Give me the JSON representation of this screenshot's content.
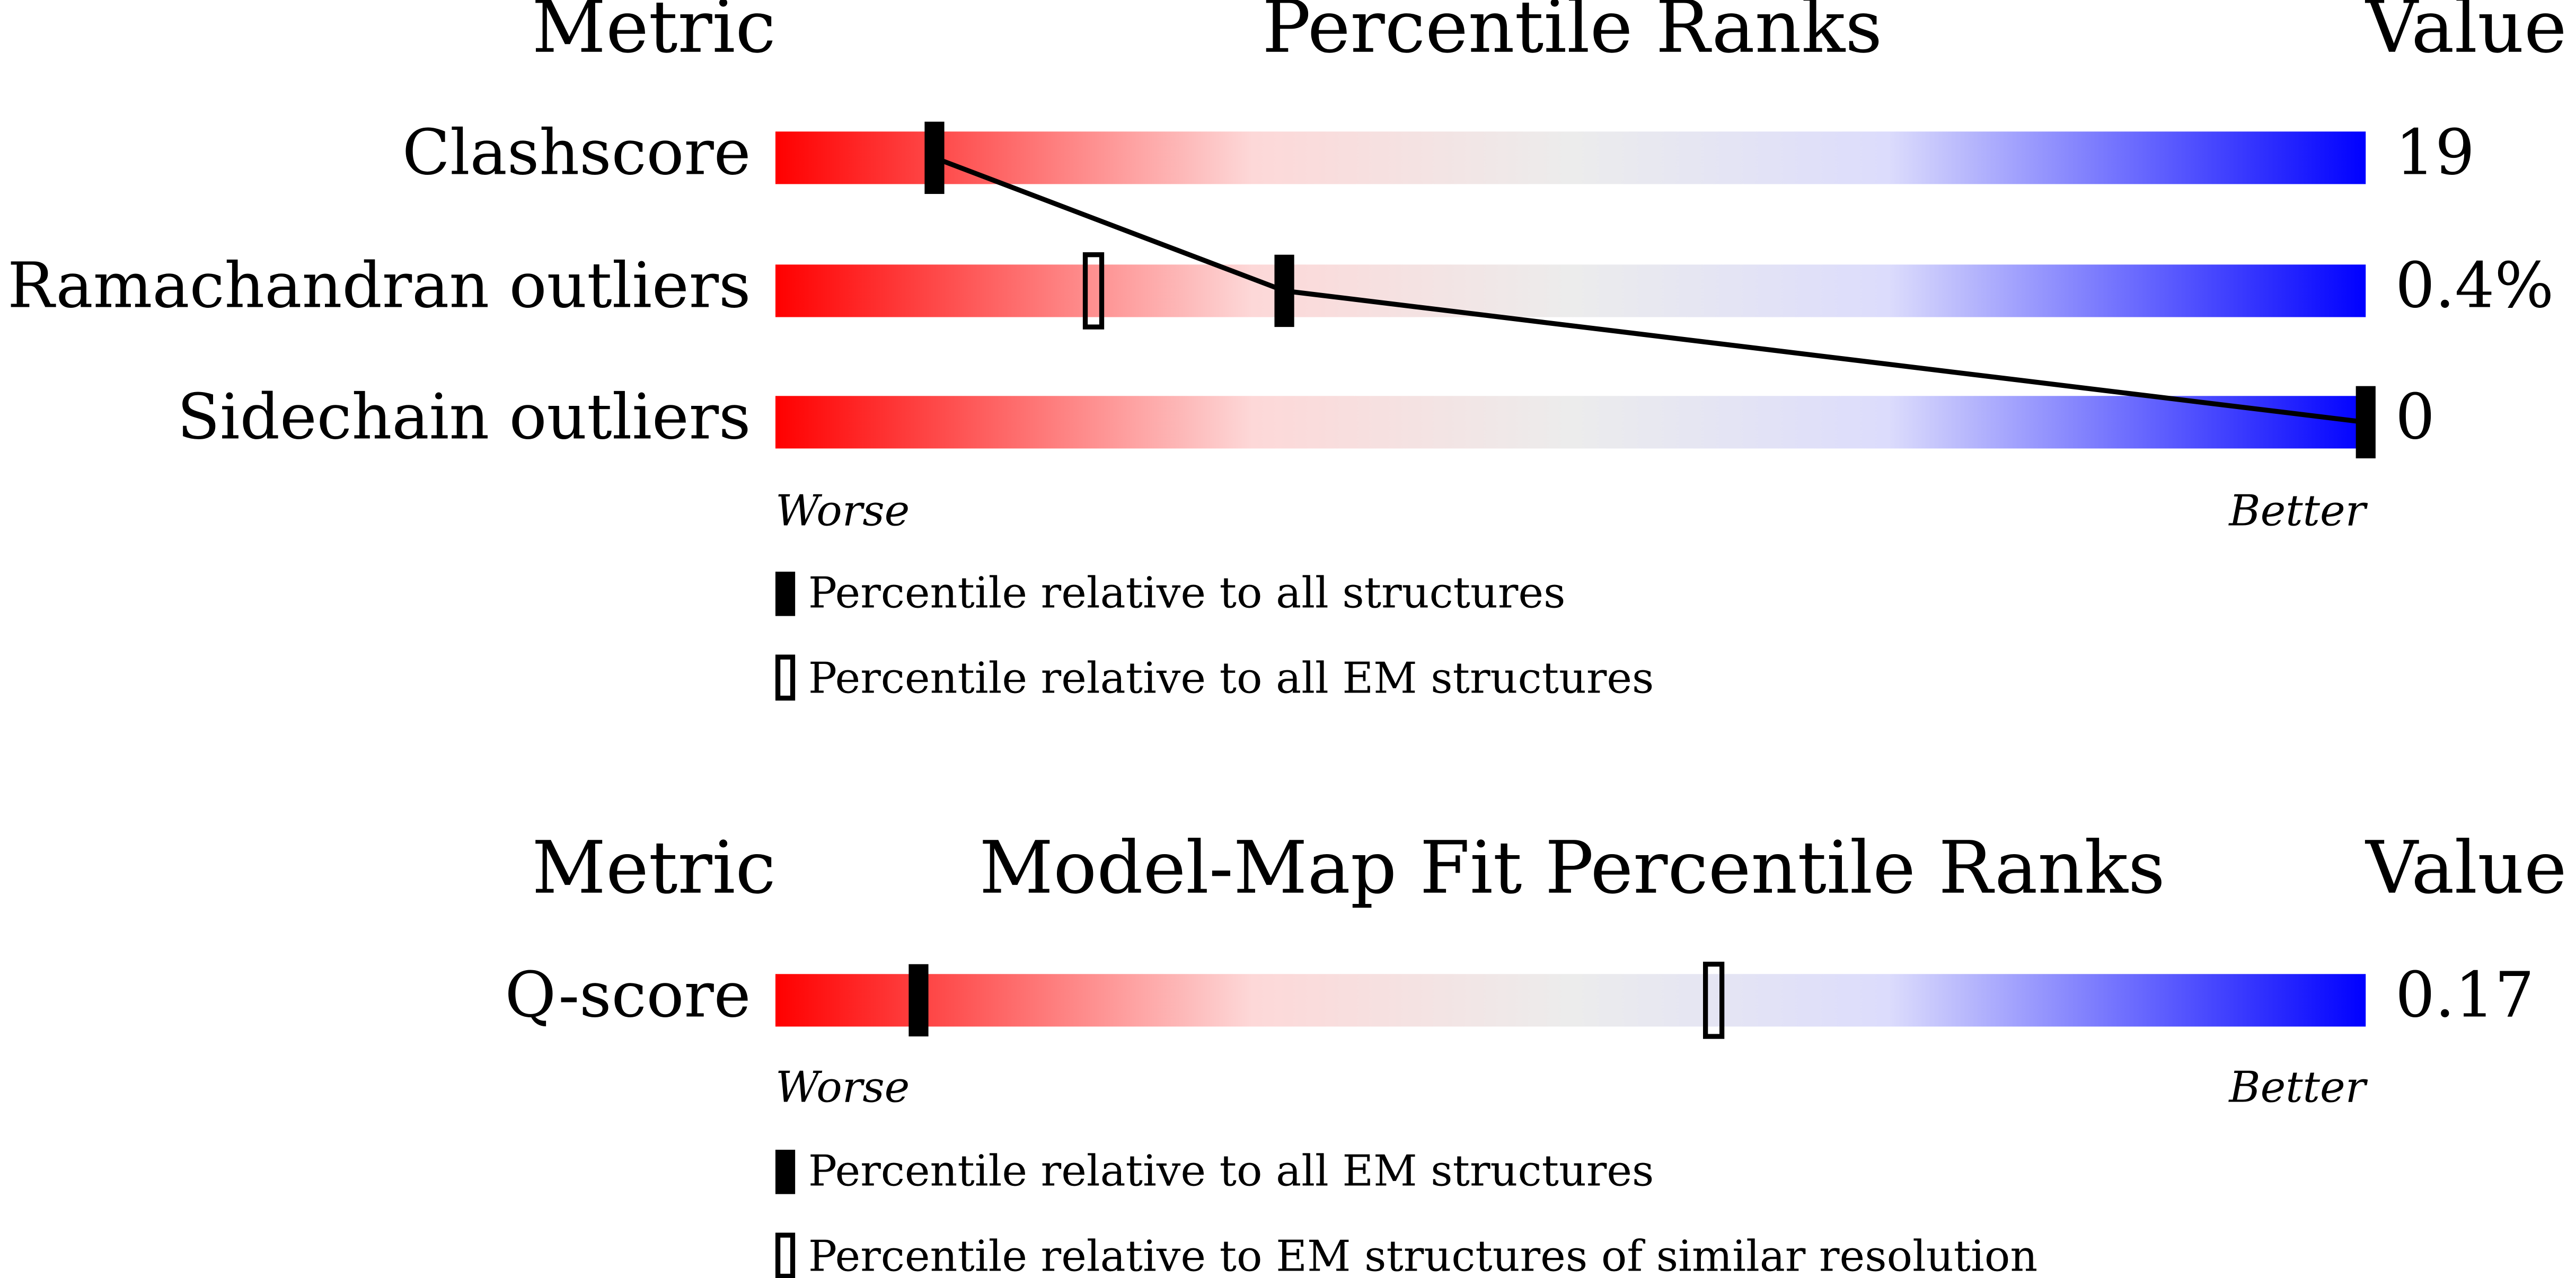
{
  "xlim": [
    0,
    100
  ],
  "panels": [
    {
      "headers": {
        "metric": "Metric",
        "title": "Percentile Ranks",
        "value": "Value"
      },
      "rows": [
        {
          "metric": "Clashscore",
          "value": "19",
          "percentile_filled": 10,
          "percentile_open": null
        },
        {
          "metric": "Ramachandran outliers",
          "value": "0.4%",
          "percentile_filled": 32,
          "percentile_open": 20
        },
        {
          "metric": "Sidechain outliers",
          "value": "0",
          "percentile_filled": 100,
          "percentile_open": null
        }
      ],
      "worse": "Worse",
      "better": "Better",
      "legend": {
        "filled": "Percentile relative to all structures",
        "open": "Percentile relative to all EM structures"
      }
    },
    {
      "headers": {
        "metric": "Metric",
        "title": "Model-Map Fit Percentile Ranks",
        "value": "Value"
      },
      "rows": [
        {
          "metric": "Q-score",
          "value": "0.17",
          "percentile_filled": 9,
          "percentile_open": 59
        }
      ],
      "worse": "Worse",
      "better": "Better",
      "legend": {
        "filled": "Percentile relative to all EM structures",
        "open": "Percentile relative to EM structures of similar resolution"
      }
    }
  ]
}
